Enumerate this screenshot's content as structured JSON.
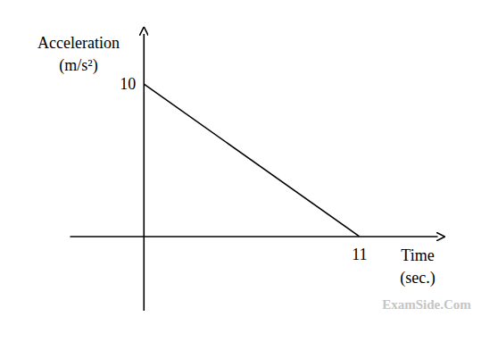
{
  "chart_data": {
    "type": "line",
    "x": [
      0,
      11
    ],
    "values": [
      10,
      0
    ],
    "color": "#000000",
    "xlim": [
      -3.8,
      15
    ],
    "ylim": [
      -4.9,
      13.3
    ],
    "xticks": [
      11
    ],
    "yticks": [
      10
    ],
    "xlabel": [
      "Time",
      "(sec.)"
    ],
    "ylabel": [
      "Acceleration",
      "(m/s²)"
    ],
    "annotations": [
      "ExamSide.Com"
    ],
    "grid": false
  }
}
